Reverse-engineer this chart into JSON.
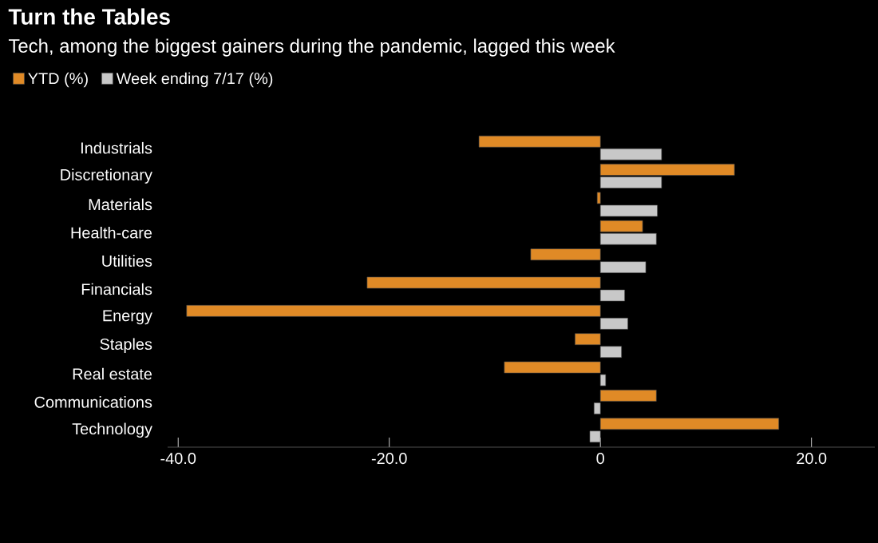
{
  "chart_data": {
    "type": "bar",
    "orientation": "horizontal",
    "title": "Turn the Tables",
    "subtitle": "Tech, among the biggest gainers during the pandemic, lagged this week",
    "categories": [
      "Industrials",
      "Discretionary",
      "Materials",
      "Health-care",
      "Utilities",
      "Financials",
      "Energy",
      "Staples",
      "Real estate",
      "Communications",
      "Technology"
    ],
    "series": [
      {
        "name": "YTD (%)",
        "color": "#e08a26",
        "values": [
          -11.5,
          12.7,
          -0.3,
          4.0,
          -6.6,
          -22.1,
          -39.2,
          -2.4,
          -9.1,
          5.3,
          16.9
        ]
      },
      {
        "name": "Week ending 7/17 (%)",
        "color": "#c8c8c8",
        "values": [
          5.8,
          5.8,
          5.4,
          5.3,
          4.3,
          2.3,
          2.6,
          2.0,
          0.5,
          -0.6,
          -1.0
        ]
      }
    ],
    "xlim": [
      -41,
      26
    ],
    "xticks": [
      {
        "value": -40,
        "label": "-40.0"
      },
      {
        "value": -20,
        "label": "-20.0"
      },
      0,
      {
        "value": 20,
        "label": "20.0"
      }
    ],
    "legend": "top left"
  }
}
